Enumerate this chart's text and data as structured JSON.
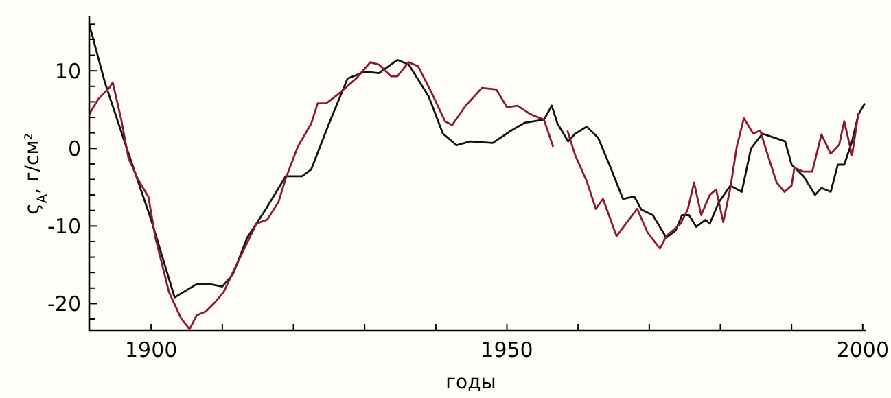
{
  "chart_data": {
    "type": "line",
    "xlabel": "годы",
    "ylabel": "ς$_{A}$, г/см²",
    "xlim": [
      1891.3,
      2000.5
    ],
    "ylim": [
      -23.5,
      17
    ],
    "xticks": [
      1900,
      {
        "value": 1910,
        "label": null
      },
      {
        "value": 1920,
        "label": null
      },
      {
        "value": 1930,
        "label": null
      },
      {
        "value": 1940,
        "label": null
      },
      1950,
      {
        "value": 1960,
        "label": null
      },
      {
        "value": 1970,
        "label": null
      },
      {
        "value": 1980,
        "label": null
      },
      {
        "value": 1990,
        "label": null
      },
      2000
    ],
    "yticks": [
      {
        "value": -22,
        "label": null
      },
      -20,
      {
        "value": -18,
        "label": null
      },
      {
        "value": -16,
        "label": null
      },
      {
        "value": -14,
        "label": null
      },
      {
        "value": -12,
        "label": null
      },
      -10,
      {
        "value": -8,
        "label": null
      },
      {
        "value": -6,
        "label": null
      },
      {
        "value": -4,
        "label": null
      },
      {
        "value": -2,
        "label": null
      },
      0,
      {
        "value": 2,
        "label": null
      },
      {
        "value": 4,
        "label": null
      },
      {
        "value": 6,
        "label": null
      },
      {
        "value": 8,
        "label": null
      },
      10,
      {
        "value": 12,
        "label": null
      },
      {
        "value": 14,
        "label": null
      },
      {
        "value": 16,
        "label": null
      }
    ],
    "grid": false,
    "marker": "none",
    "line_style": "solid",
    "series": [
      {
        "color": "#111111",
        "x": [
          1891.3,
          1893.5,
          1896.5,
          1900,
          1903.3,
          1906.4,
          1908.3,
          1910,
          1911.5,
          1913.5,
          1916,
          1918.9,
          1921.2,
          1922.5,
          1925,
          1927.6,
          1930.1,
          1932,
          1934.6,
          1936.2,
          1939,
          1941,
          1942.3,
          1942.9,
          1944.8,
          1948,
          1950.6,
          1952.5,
          1955.2,
          1956.3,
          1957.1,
          1958.6,
          1959.6,
          1961.2,
          1962.8,
          1964.4,
          1966.3,
          1967.9,
          1968.9,
          1970.5,
          1972.4,
          1973.7,
          1974.6,
          1975.6,
          1976.6,
          1977.9,
          1978.5,
          1979.8,
          1981.4,
          1983,
          1984.3,
          1985.9,
          1987.5,
          1989.1,
          1990,
          1991.7,
          1993.3,
          1994.2,
          1995.5,
          1996.5,
          1997.4,
          1998.5,
          1999.4,
          2000.3
        ],
        "values": [
          16,
          8.5,
          0.2,
          -9.2,
          -19.2,
          -17.5,
          -17.5,
          -17.8,
          -16.2,
          -11.5,
          -8,
          -3.6,
          -3.6,
          -2.7,
          3.2,
          9,
          9.9,
          9.7,
          11.4,
          10.8,
          6.7,
          1.9,
          0.9,
          0.4,
          0.9,
          0.7,
          2.3,
          3.3,
          3.7,
          5.5,
          3.2,
          0.9,
          1.9,
          2.8,
          1.4,
          -2.1,
          -6.5,
          -6.2,
          -7.9,
          -8.6,
          -11.5,
          -10.6,
          -8.6,
          -8.6,
          -10.1,
          -9.2,
          -9.7,
          -6.9,
          -4.8,
          -5.6,
          0,
          1.9,
          1.4,
          0.9,
          -2.1,
          -3.6,
          -6,
          -5.1,
          -5.6,
          -2.1,
          -2.1,
          0.9,
          4.4,
          5.8
        ]
      },
      {
        "color": "#8b1a3a",
        "x": [
          1891.3,
          1892.6,
          1894.2,
          1894.6,
          1895.8,
          1896.8,
          1898.1,
          1899,
          1899.6,
          1900.6,
          1902.5,
          1904.2,
          1905.4,
          1906.4,
          1907.7,
          1909,
          1910.2,
          1912.1,
          1914.8,
          1916.3,
          1917.9,
          1918.9,
          1920.6,
          1922.5,
          1923.4,
          1924.6,
          1926.3,
          1928.8,
          1930.8,
          1932,
          1933.7,
          1934.6,
          1936.2,
          1937.5,
          1939.4,
          1941.3,
          1942.3,
          1944.2,
          1946.5,
          1948.5,
          1950,
          1951.5,
          1953.3,
          1955.2,
          1956.5,
          1957.5,
          1958.5,
          1959.6,
          1961.2,
          1962.5,
          1963.5,
          1965.4,
          1968.3,
          1969.8,
          1971.5,
          1972.4,
          1974.4,
          1975.4,
          1976.3,
          1977.3,
          1978.5,
          1979.4,
          1980.4,
          1981.4,
          1982.3,
          1983.3,
          1984.6,
          1985.6,
          1986.5,
          1987.9,
          1989,
          1990,
          1990.4,
          1991.7,
          1992.9,
          1994.2,
          1995.5,
          1996.7,
          1997.4,
          1998.5,
          1999.4
        ],
        "values": [
          4.4,
          6.4,
          7.9,
          8.5,
          3.7,
          -1.2,
          -3.9,
          -5.3,
          -6.2,
          -11.5,
          -18.5,
          -21.9,
          -23.3,
          -21.5,
          -21,
          -19.8,
          -18.5,
          -14.8,
          -9.7,
          -9.2,
          -6.9,
          -3.9,
          0.2,
          3.2,
          5.8,
          5.8,
          7,
          9,
          11.1,
          10.8,
          9.3,
          9.3,
          11.1,
          10.6,
          7.2,
          3.5,
          3,
          5.5,
          7.8,
          7.6,
          5.3,
          5.5,
          4.4,
          3.7,
          0.2,
          null,
          2.3,
          -0.9,
          -4.2,
          -7.8,
          -6.5,
          -11.3,
          -7.8,
          -10.9,
          -12.9,
          -11.3,
          -9.7,
          -7.9,
          -4.4,
          -8.6,
          -6,
          -5.3,
          -9.5,
          -5.1,
          0.2,
          3.9,
          1.9,
          2.3,
          -0.4,
          -4.4,
          -5.6,
          -4.8,
          -2.5,
          -3,
          -3,
          1.8,
          -0.7,
          0.5,
          3.5,
          -0.9,
          4.6
        ]
      }
    ]
  }
}
